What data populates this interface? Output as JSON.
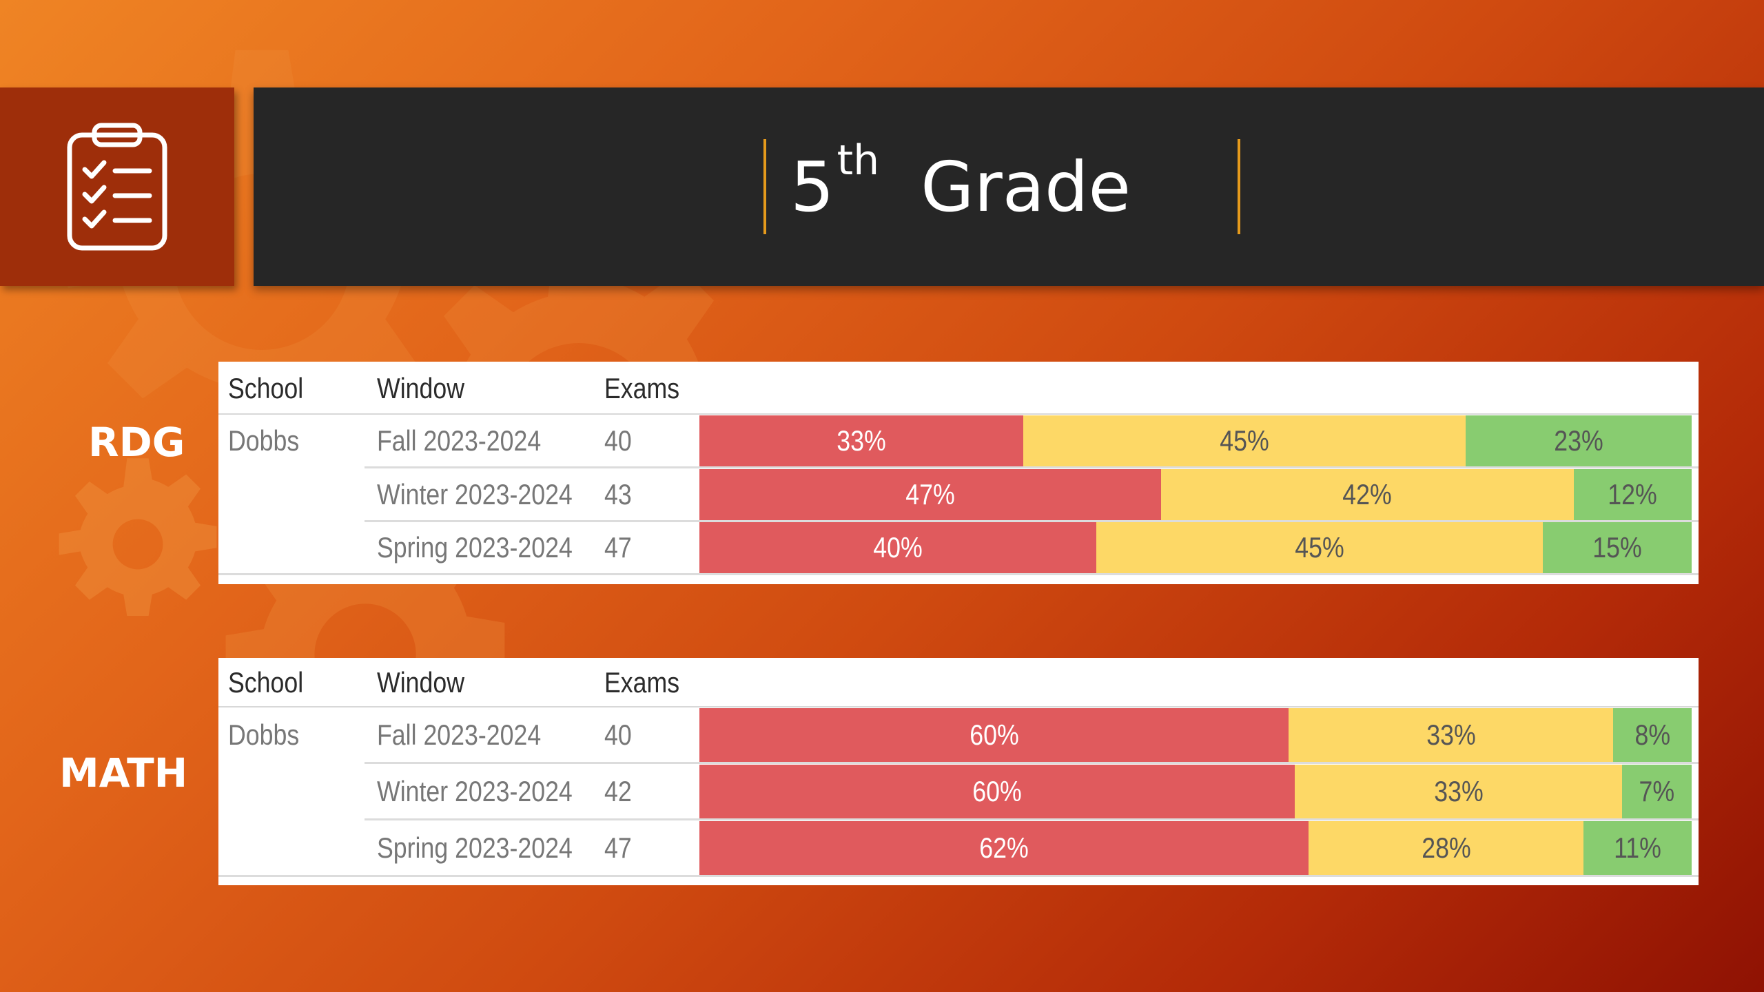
{
  "header": {
    "grade_number": "5",
    "grade_suffix": "th",
    "grade_word": "Grade"
  },
  "columns": {
    "school": "School",
    "window": "Window",
    "exams": "Exams"
  },
  "colors": {
    "red": "#e05a5d",
    "yellow": "#fdd866",
    "green": "#88cc70"
  },
  "icon": "clipboard-checklist-icon",
  "chart_data": [
    {
      "type": "bar",
      "subject": "RDG",
      "school": "Dobbs",
      "categories": [
        "Fall 2023-2024",
        "Winter 2023-2024",
        "Spring 2023-2024"
      ],
      "exams": [
        "40",
        "43",
        "47"
      ],
      "segments": [
        [
          {
            "color": "red",
            "value": 33,
            "label": "33%"
          },
          {
            "color": "yellow",
            "value": 45,
            "label": "45%"
          },
          {
            "color": "green",
            "value": 23,
            "label": "23%"
          }
        ],
        [
          {
            "color": "red",
            "value": 47,
            "label": "47%"
          },
          {
            "color": "yellow",
            "value": 42,
            "label": "42%"
          },
          {
            "color": "green",
            "value": 12,
            "label": "12%"
          }
        ],
        [
          {
            "color": "red",
            "value": 40,
            "label": "40%"
          },
          {
            "color": "yellow",
            "value": 45,
            "label": "45%"
          },
          {
            "color": "green",
            "value": 15,
            "label": "15%"
          }
        ]
      ]
    },
    {
      "type": "bar",
      "subject": "MATH",
      "school": "Dobbs",
      "categories": [
        "Fall 2023-2024",
        "Winter 2023-2024",
        "Spring 2023-2024"
      ],
      "exams": [
        "40",
        "42",
        "47"
      ],
      "segments": [
        [
          {
            "color": "red",
            "value": 60,
            "label": "60%"
          },
          {
            "color": "yellow",
            "value": 33,
            "label": "33%"
          },
          {
            "color": "green",
            "value": 8,
            "label": "8%"
          }
        ],
        [
          {
            "color": "red",
            "value": 60,
            "label": "60%"
          },
          {
            "color": "yellow",
            "value": 33,
            "label": "33%"
          },
          {
            "color": "green",
            "value": 7,
            "label": "7%"
          }
        ],
        [
          {
            "color": "red",
            "value": 62,
            "label": "62%"
          },
          {
            "color": "yellow",
            "value": 28,
            "label": "28%"
          },
          {
            "color": "green",
            "value": 11,
            "label": "11%"
          }
        ]
      ]
    }
  ]
}
